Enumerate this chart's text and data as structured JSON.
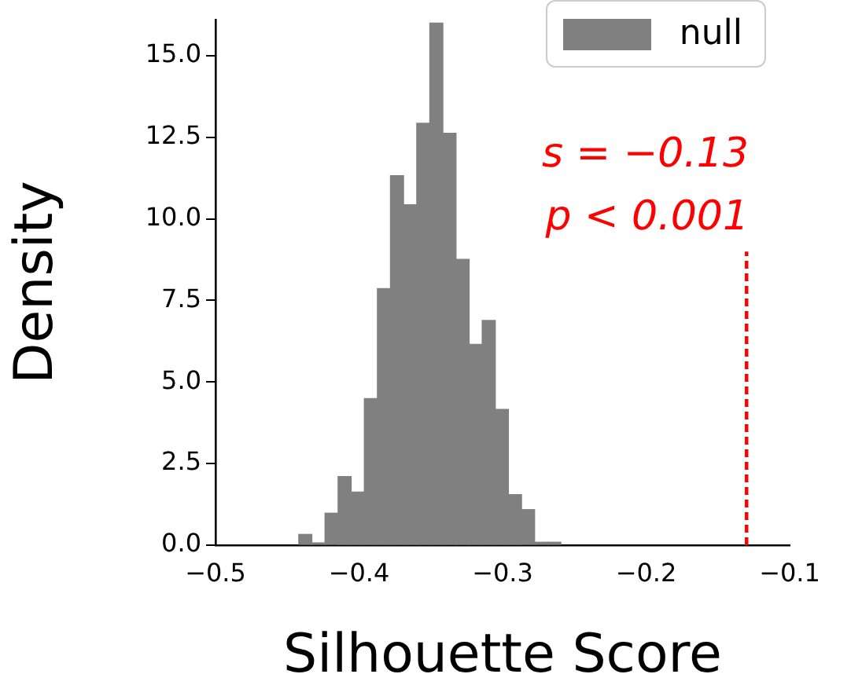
{
  "chart_data": {
    "type": "histogram",
    "xlabel": "Silhouette Score",
    "ylabel": "Density",
    "bins": [
      -0.442,
      -0.4329,
      -0.4237,
      -0.4146,
      -0.4055,
      -0.3963,
      -0.3872,
      -0.3781,
      -0.369,
      -0.3598,
      -0.3507,
      -0.3416,
      -0.3324,
      -0.3233,
      -0.3142,
      -0.3051,
      -0.2959,
      -0.2868,
      -0.2777,
      -0.2685,
      -0.2594
    ],
    "series": [
      {
        "name": "null",
        "color": "#808080",
        "values": [
          0.33,
          0.07,
          0.98,
          2.1,
          1.63,
          4.49,
          7.86,
          11.32,
          10.43,
          12.93,
          16.0,
          12.62,
          8.76,
          6.15,
          6.89,
          4.16,
          1.55,
          1.09,
          0.09,
          0.09
        ]
      },
      {
        "type": "line",
        "color": "#ff0000",
        "line_style": "dashed",
        "x": [
          -0.13,
          -0.13
        ],
        "values": [
          0,
          9
        ]
      }
    ],
    "annotations": [
      "s = −0.13",
      "p < 0.001"
    ],
    "xlim": [
      -0.5,
      -0.1
    ],
    "ylim": [
      0,
      16.1
    ],
    "xticks": [
      {
        "value": -0.5,
        "label": "−0.5"
      },
      {
        "value": -0.4,
        "label": "−0.4"
      },
      {
        "value": -0.3,
        "label": "−0.3"
      },
      {
        "value": -0.2,
        "label": "−0.2"
      },
      {
        "value": -0.1,
        "label": "−0.1"
      }
    ],
    "yticks": [
      {
        "value": 0,
        "label": "0.0"
      },
      {
        "value": 2.5,
        "label": "2.5"
      },
      {
        "value": 5,
        "label": "5.0"
      },
      {
        "value": 7.5,
        "label": "7.5"
      },
      {
        "value": 10,
        "label": "10.0"
      },
      {
        "value": 12.5,
        "label": "12.5"
      },
      {
        "value": 15,
        "label": "15.0"
      }
    ],
    "legend": "top right",
    "grid": false
  }
}
